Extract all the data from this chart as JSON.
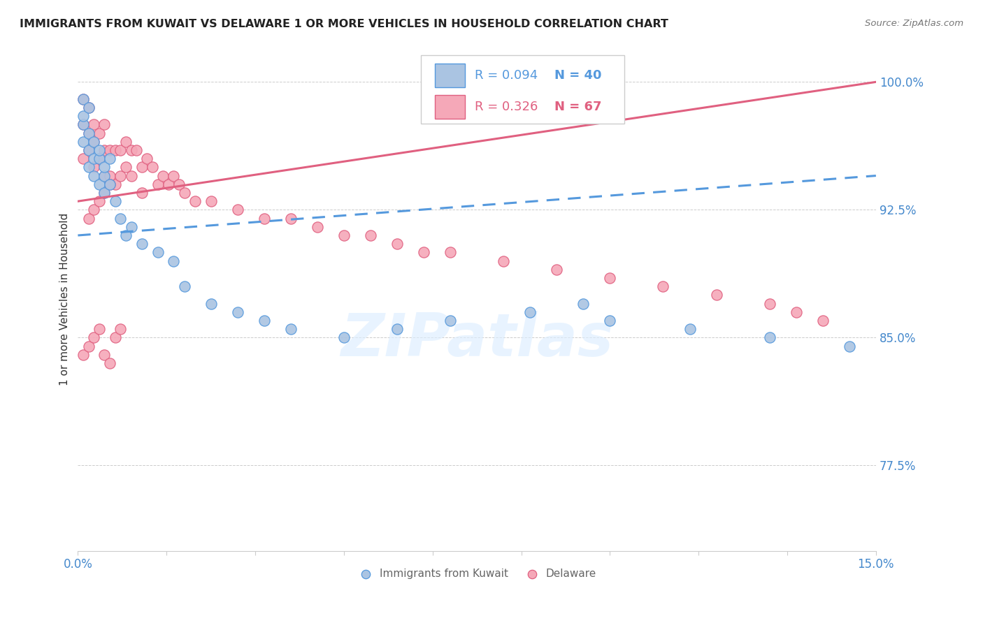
{
  "title": "IMMIGRANTS FROM KUWAIT VS DELAWARE 1 OR MORE VEHICLES IN HOUSEHOLD CORRELATION CHART",
  "source": "Source: ZipAtlas.com",
  "ylabel": "1 or more Vehicles in Household",
  "ytick_vals": [
    0.775,
    0.85,
    0.925,
    1.0
  ],
  "ytick_labels": [
    "77.5%",
    "85.0%",
    "92.5%",
    "100.0%"
  ],
  "xmin": 0.0,
  "xmax": 0.15,
  "ymin": 0.725,
  "ymax": 1.02,
  "color_kuwait": "#aac4e2",
  "color_delaware": "#f5a8b8",
  "color_trendline_kuwait": "#5599dd",
  "color_trendline_delaware": "#e06080",
  "color_axis_labels": "#4488cc",
  "color_title": "#222222",
  "legend_label1": "Immigrants from Kuwait",
  "legend_label2": "Delaware",
  "kuwait_trendline_x": [
    0.0,
    0.15
  ],
  "kuwait_trendline_y": [
    0.91,
    0.945
  ],
  "delaware_trendline_x": [
    0.0,
    0.15
  ],
  "delaware_trendline_y": [
    0.93,
    1.0
  ],
  "kuwait_x": [
    0.001,
    0.001,
    0.001,
    0.001,
    0.002,
    0.002,
    0.002,
    0.002,
    0.003,
    0.003,
    0.003,
    0.004,
    0.004,
    0.004,
    0.005,
    0.005,
    0.005,
    0.006,
    0.006,
    0.007,
    0.008,
    0.009,
    0.01,
    0.012,
    0.015,
    0.018,
    0.02,
    0.025,
    0.03,
    0.035,
    0.04,
    0.05,
    0.06,
    0.07,
    0.085,
    0.095,
    0.1,
    0.115,
    0.13,
    0.145
  ],
  "kuwait_y": [
    0.965,
    0.975,
    0.98,
    0.99,
    0.95,
    0.96,
    0.97,
    0.985,
    0.945,
    0.955,
    0.965,
    0.94,
    0.955,
    0.96,
    0.935,
    0.945,
    0.95,
    0.94,
    0.955,
    0.93,
    0.92,
    0.91,
    0.915,
    0.905,
    0.9,
    0.895,
    0.88,
    0.87,
    0.865,
    0.86,
    0.855,
    0.85,
    0.855,
    0.86,
    0.865,
    0.87,
    0.86,
    0.855,
    0.85,
    0.845
  ],
  "delaware_x": [
    0.001,
    0.001,
    0.001,
    0.002,
    0.002,
    0.002,
    0.003,
    0.003,
    0.003,
    0.004,
    0.004,
    0.005,
    0.005,
    0.005,
    0.006,
    0.006,
    0.007,
    0.007,
    0.008,
    0.008,
    0.009,
    0.009,
    0.01,
    0.01,
    0.011,
    0.012,
    0.012,
    0.013,
    0.014,
    0.015,
    0.016,
    0.017,
    0.018,
    0.019,
    0.02,
    0.022,
    0.025,
    0.03,
    0.035,
    0.04,
    0.045,
    0.05,
    0.055,
    0.06,
    0.065,
    0.07,
    0.08,
    0.09,
    0.1,
    0.11,
    0.12,
    0.13,
    0.135,
    0.14,
    0.001,
    0.002,
    0.003,
    0.004,
    0.005,
    0.006,
    0.007,
    0.008,
    0.002,
    0.003,
    0.004,
    0.005,
    0.006
  ],
  "delaware_y": [
    0.99,
    0.975,
    0.955,
    0.985,
    0.97,
    0.96,
    0.975,
    0.965,
    0.95,
    0.97,
    0.955,
    0.975,
    0.96,
    0.945,
    0.96,
    0.945,
    0.96,
    0.94,
    0.96,
    0.945,
    0.965,
    0.95,
    0.96,
    0.945,
    0.96,
    0.95,
    0.935,
    0.955,
    0.95,
    0.94,
    0.945,
    0.94,
    0.945,
    0.94,
    0.935,
    0.93,
    0.93,
    0.925,
    0.92,
    0.92,
    0.915,
    0.91,
    0.91,
    0.905,
    0.9,
    0.9,
    0.895,
    0.89,
    0.885,
    0.88,
    0.875,
    0.87,
    0.865,
    0.86,
    0.84,
    0.845,
    0.85,
    0.855,
    0.84,
    0.835,
    0.85,
    0.855,
    0.92,
    0.925,
    0.93,
    0.935,
    0.94
  ]
}
